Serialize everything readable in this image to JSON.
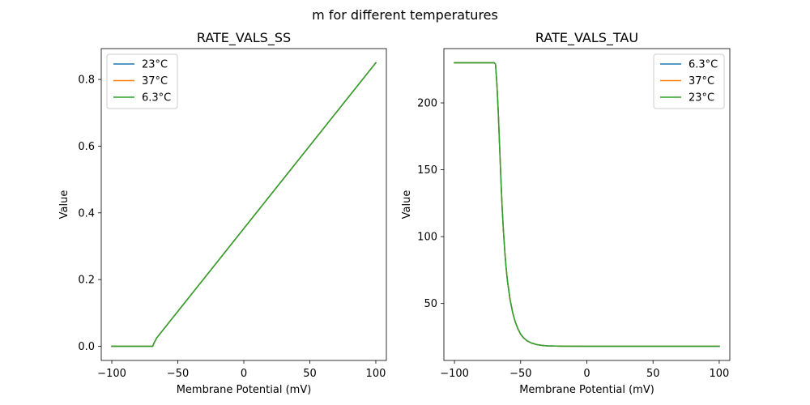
{
  "figure": {
    "suptitle": "m for different temperatures"
  },
  "chart_data": [
    {
      "type": "line",
      "title": "RATE_VALS_SS",
      "xlabel": "Membrane Potential (mV)",
      "ylabel": "Value",
      "xlim": [
        -108,
        108
      ],
      "ylim": [
        -0.0425,
        0.8925
      ],
      "xticks": [
        -100,
        -50,
        0,
        50,
        100
      ],
      "xtick_labels": [
        "−100",
        "−50",
        "0",
        "50",
        "100"
      ],
      "yticks": [
        0.0,
        0.2,
        0.4,
        0.6,
        0.8
      ],
      "ytick_labels": [
        "0.0",
        "0.2",
        "0.4",
        "0.6",
        "0.8"
      ],
      "legend_location": "upper-left",
      "series": [
        {
          "name": "23°C",
          "color": "#1f77b4",
          "x": [
            -100,
            -80,
            -69,
            -68,
            -66,
            100
          ],
          "y": [
            0.0,
            0.0,
            0.0,
            0.01,
            0.025,
            0.85
          ]
        },
        {
          "name": "37°C",
          "color": "#ff7f0e",
          "x": [
            -100,
            -80,
            -69,
            -68,
            -66,
            100
          ],
          "y": [
            0.0,
            0.0,
            0.0,
            0.01,
            0.025,
            0.85
          ]
        },
        {
          "name": "6.3°C",
          "color": "#2ca02c",
          "x": [
            -100,
            -80,
            -69,
            -68,
            -66,
            100
          ],
          "y": [
            0.0,
            0.0,
            0.0,
            0.01,
            0.025,
            0.85
          ]
        }
      ]
    },
    {
      "type": "line",
      "title": "RATE_VALS_TAU",
      "xlabel": "Membrane Potential (mV)",
      "ylabel": "Value",
      "xlim": [
        -108,
        108
      ],
      "ylim": [
        7.4,
        240.6
      ],
      "xticks": [
        -100,
        -50,
        0,
        50,
        100
      ],
      "xtick_labels": [
        "−100",
        "−50",
        "0",
        "50",
        "100"
      ],
      "yticks": [
        50,
        100,
        150,
        200
      ],
      "ytick_labels": [
        "50",
        "100",
        "150",
        "200"
      ],
      "legend_location": "upper-right",
      "series": [
        {
          "name": "6.3°C",
          "color": "#1f77b4",
          "x": [
            -100,
            -80,
            -70,
            -69,
            -68,
            -67,
            -66,
            -65,
            -64,
            -63,
            -62,
            -61,
            -60,
            -58,
            -56,
            -54,
            -52,
            -50,
            -48,
            -45,
            -42,
            -38,
            -34,
            -30,
            -20,
            0,
            50,
            100
          ],
          "y": [
            230,
            230,
            230,
            229,
            215,
            195,
            170,
            145,
            122,
            104,
            89,
            77,
            67,
            53,
            43,
            36,
            31,
            27,
            24.5,
            22,
            20.5,
            19.3,
            18.7,
            18.3,
            18.1,
            18,
            18,
            18
          ]
        },
        {
          "name": "37°C",
          "color": "#ff7f0e",
          "x": [
            -100,
            -80,
            -70,
            -69,
            -68,
            -67,
            -66,
            -65,
            -64,
            -63,
            -62,
            -61,
            -60,
            -58,
            -56,
            -54,
            -52,
            -50,
            -48,
            -45,
            -42,
            -38,
            -34,
            -30,
            -20,
            0,
            50,
            100
          ],
          "y": [
            230,
            230,
            230,
            229,
            215,
            195,
            170,
            145,
            122,
            104,
            89,
            77,
            67,
            53,
            43,
            36,
            31,
            27,
            24.5,
            22,
            20.5,
            19.3,
            18.7,
            18.3,
            18.1,
            18,
            18,
            18
          ]
        },
        {
          "name": "23°C",
          "color": "#2ca02c",
          "x": [
            -100,
            -80,
            -70,
            -69,
            -68,
            -67,
            -66,
            -65,
            -64,
            -63,
            -62,
            -61,
            -60,
            -58,
            -56,
            -54,
            -52,
            -50,
            -48,
            -45,
            -42,
            -38,
            -34,
            -30,
            -20,
            0,
            50,
            100
          ],
          "y": [
            230,
            230,
            230,
            229,
            215,
            195,
            170,
            145,
            122,
            104,
            89,
            77,
            67,
            53,
            43,
            36,
            31,
            27,
            24.5,
            22,
            20.5,
            19.3,
            18.7,
            18.3,
            18.1,
            18,
            18,
            18
          ]
        }
      ]
    }
  ]
}
